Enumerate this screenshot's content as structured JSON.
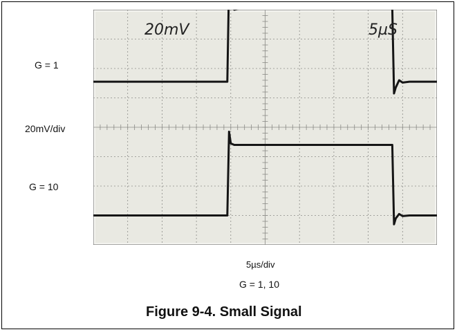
{
  "figure": {
    "caption": "Figure 9-4. Small Signal",
    "row_labels": {
      "top_gain": "G = 1",
      "scale": "20mV/div",
      "bottom_gain": "G = 10"
    },
    "time_scale_label": "5µs/div",
    "gain_label": "G = 1, 10"
  },
  "chart_data": {
    "type": "line",
    "title": "",
    "xlabel": "5µs/div",
    "ylabel": "20mV/div",
    "grid": true,
    "screen_annotations": {
      "volts": "20mV",
      "time": "5µS"
    },
    "x_divisions": 10,
    "y_divisions": 8,
    "colors": {
      "screen": "#e9e9e2",
      "grid": "#8a8a86",
      "trace": "#151515",
      "bezel": "#f4f4f0"
    },
    "series": [
      {
        "name": "G = 1",
        "x": [
          0,
          3.8,
          3.9,
          3.95,
          4.0,
          4.1,
          4.3,
          8.7,
          8.75,
          8.8,
          8.9,
          9.0,
          9.2,
          12.0
        ],
        "y": [
          1.55,
          1.55,
          1.55,
          4.95,
          4.2,
          4.0,
          4.05,
          4.05,
          1.15,
          1.35,
          1.6,
          1.52,
          1.55,
          1.55
        ]
      },
      {
        "name": "G = 10",
        "x": [
          0,
          3.8,
          3.9,
          3.95,
          4.0,
          4.1,
          4.3,
          8.7,
          8.75,
          8.8,
          8.9,
          9.0,
          9.2,
          12.0
        ],
        "y": [
          -3.0,
          -3.0,
          -3.0,
          -0.15,
          -0.55,
          -0.6,
          -0.6,
          -0.6,
          -3.3,
          -3.1,
          -2.95,
          -3.02,
          -3.0,
          -3.0
        ]
      }
    ]
  }
}
